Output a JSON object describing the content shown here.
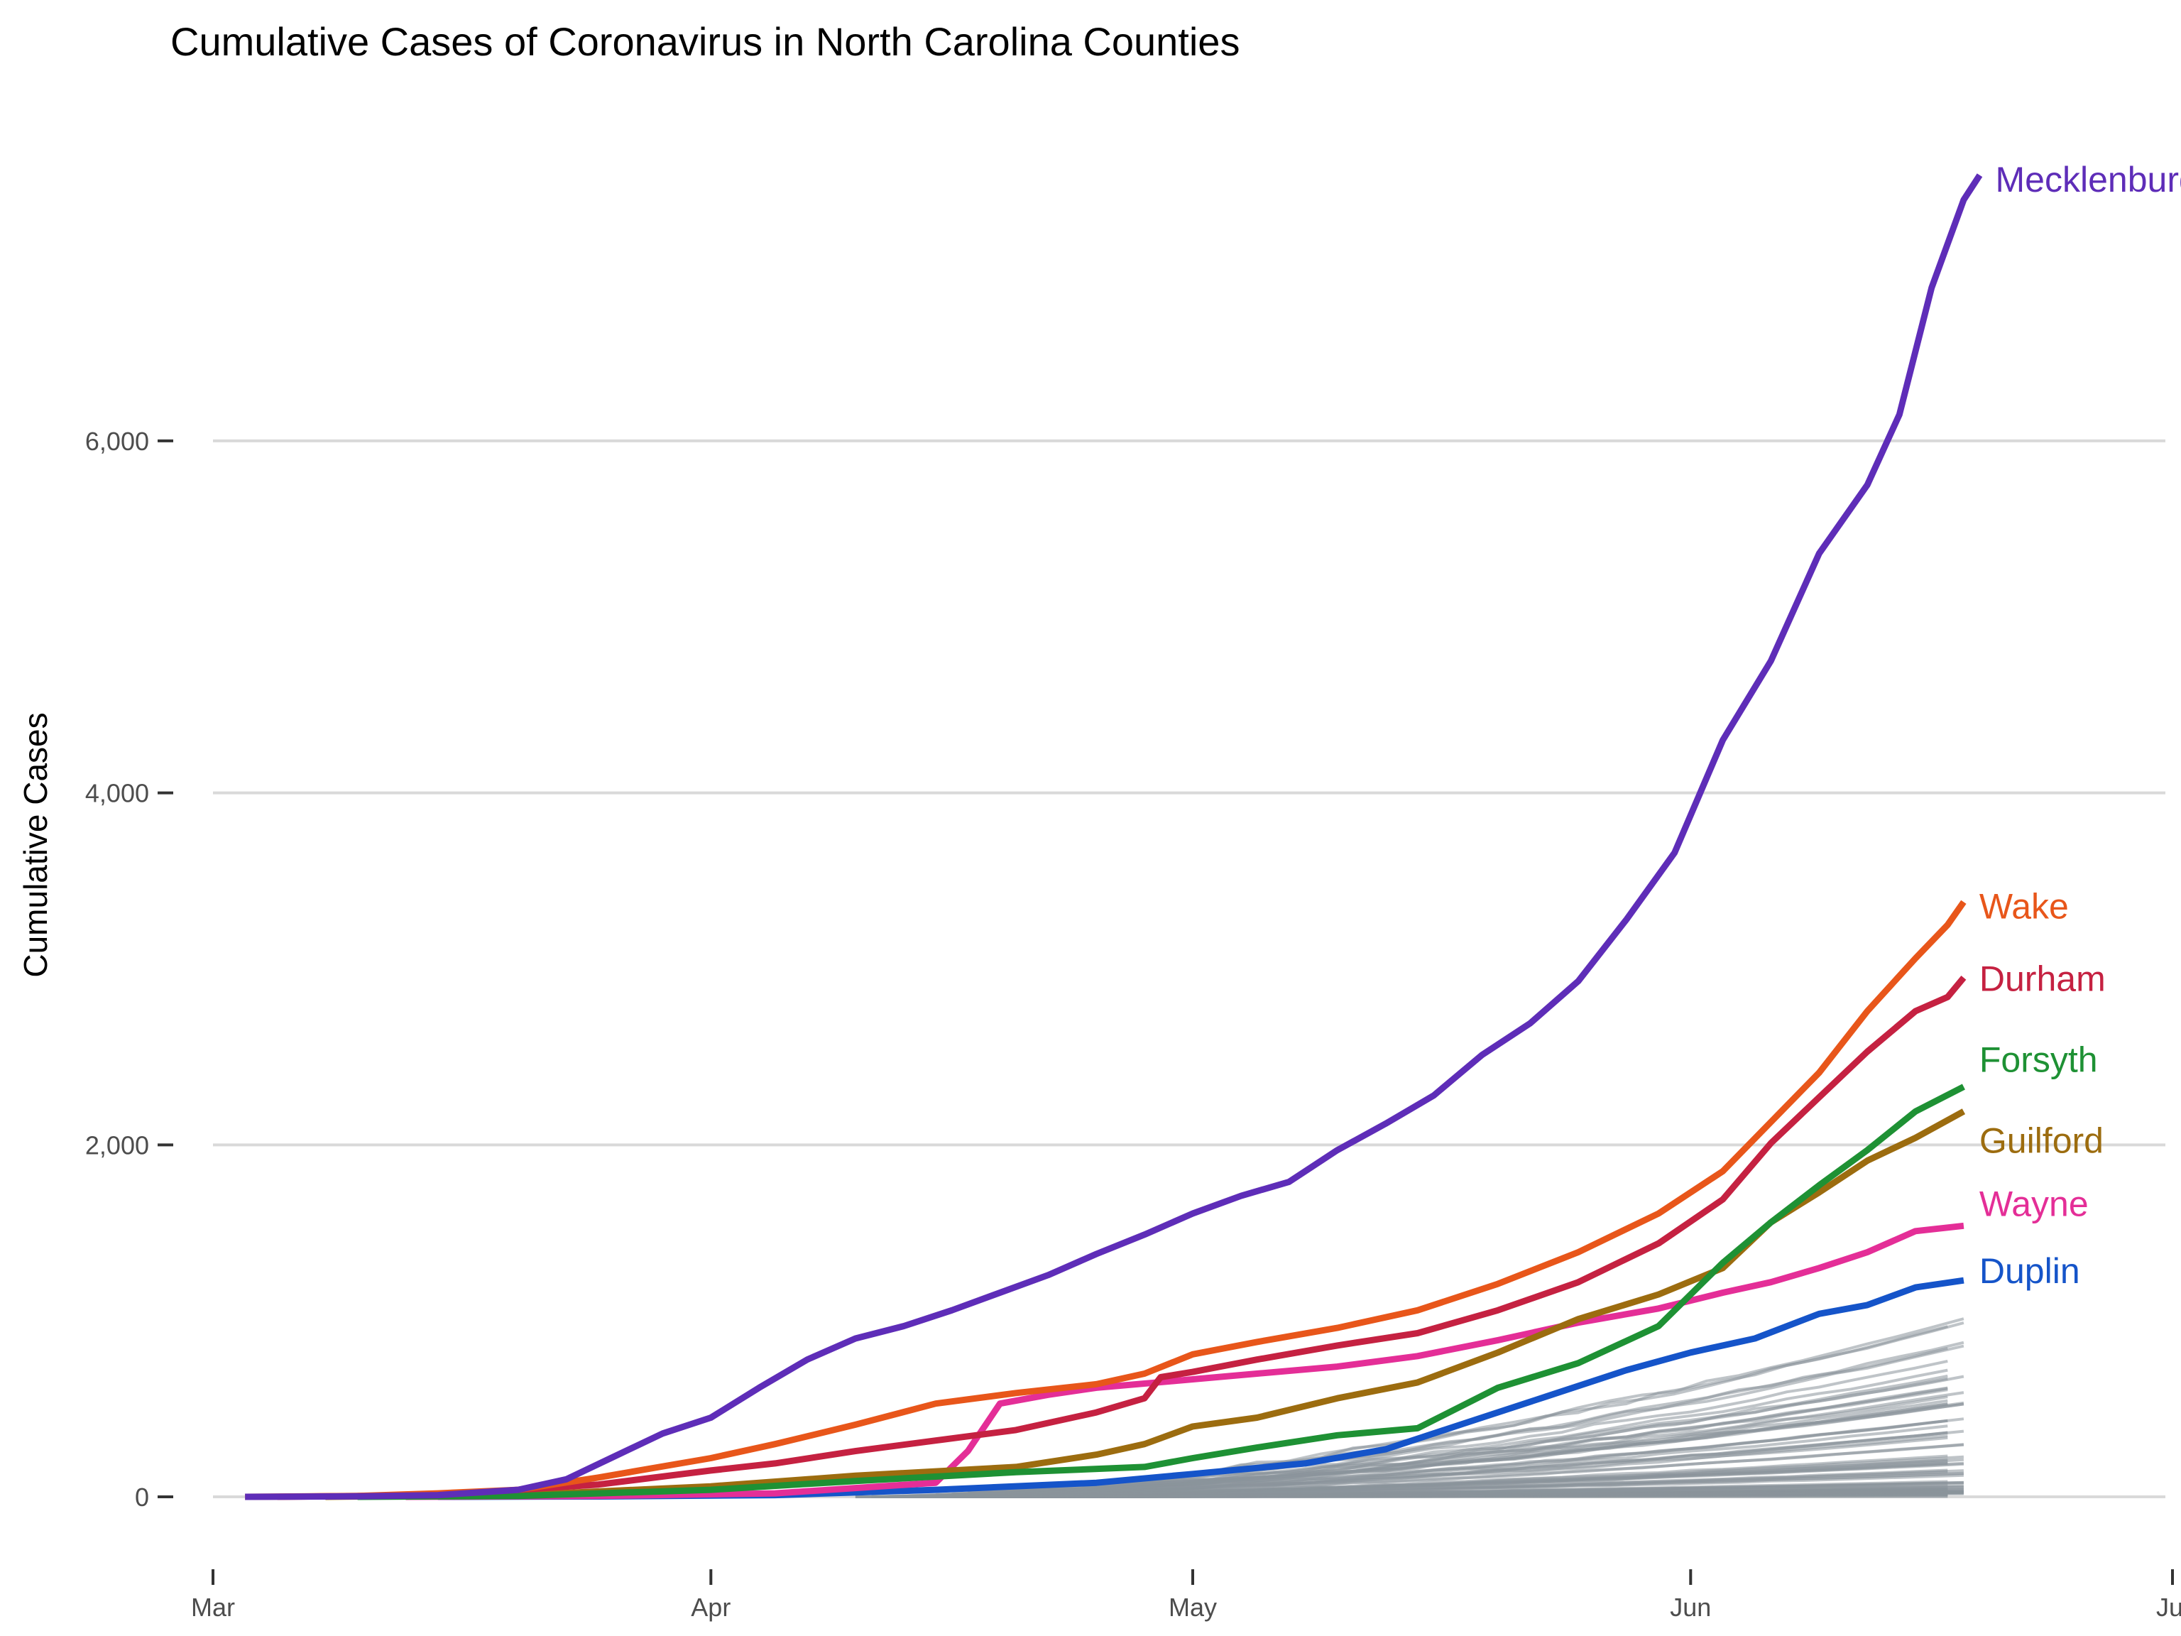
{
  "chart_data": {
    "type": "line",
    "title": "Cumulative Cases of Coronavirus in North Carolina Counties",
    "xlabel": "",
    "ylabel": "Cumulative Cases",
    "x_axis_type": "date",
    "xlim": [
      "2020-03-01",
      "2020-07-01"
    ],
    "ylim": [
      -250,
      7900
    ],
    "x_ticks": [
      {
        "value": "2020-03-01",
        "label": "Mar"
      },
      {
        "value": "2020-04-01",
        "label": "Apr"
      },
      {
        "value": "2020-05-01",
        "label": "May"
      },
      {
        "value": "2020-06-01",
        "label": "Jun"
      },
      {
        "value": "2020-07-01",
        "label": "Jul"
      }
    ],
    "y_ticks": [
      {
        "value": 0,
        "label": "0"
      },
      {
        "value": 2000,
        "label": "2,000"
      },
      {
        "value": 4000,
        "label": "4,000"
      },
      {
        "value": 6000,
        "label": "6,000"
      }
    ],
    "grid": true,
    "legend": "direct labels at line ends",
    "series": [
      {
        "name": "Mecklenburg",
        "color": "#5E2DB8",
        "points": [
          [
            "2020-03-03",
            0
          ],
          [
            "2020-03-10",
            3
          ],
          [
            "2020-03-15",
            10
          ],
          [
            "2020-03-20",
            40
          ],
          [
            "2020-03-23",
            100
          ],
          [
            "2020-03-26",
            230
          ],
          [
            "2020-03-29",
            360
          ],
          [
            "2020-04-01",
            450
          ],
          [
            "2020-04-04",
            620
          ],
          [
            "2020-04-07",
            780
          ],
          [
            "2020-04-10",
            900
          ],
          [
            "2020-04-13",
            970
          ],
          [
            "2020-04-16",
            1060
          ],
          [
            "2020-04-19",
            1160
          ],
          [
            "2020-04-22",
            1260
          ],
          [
            "2020-04-25",
            1380
          ],
          [
            "2020-04-28",
            1490
          ],
          [
            "2020-05-01",
            1610
          ],
          [
            "2020-05-04",
            1710
          ],
          [
            "2020-05-07",
            1790
          ],
          [
            "2020-05-10",
            1970
          ],
          [
            "2020-05-13",
            2120
          ],
          [
            "2020-05-16",
            2280
          ],
          [
            "2020-05-19",
            2510
          ],
          [
            "2020-05-22",
            2690
          ],
          [
            "2020-05-25",
            2930
          ],
          [
            "2020-05-28",
            3280
          ],
          [
            "2020-05-31",
            3660
          ],
          [
            "2020-06-03",
            4300
          ],
          [
            "2020-06-06",
            4750
          ],
          [
            "2020-06-09",
            5360
          ],
          [
            "2020-06-12",
            5750
          ],
          [
            "2020-06-14",
            6150
          ],
          [
            "2020-06-16",
            6870
          ],
          [
            "2020-06-18",
            7370
          ],
          [
            "2020-06-19",
            7510
          ]
        ]
      },
      {
        "name": "Wake",
        "color": "#E8561A",
        "points": [
          [
            "2020-03-03",
            0
          ],
          [
            "2020-03-10",
            5
          ],
          [
            "2020-03-15",
            20
          ],
          [
            "2020-03-20",
            40
          ],
          [
            "2020-03-25",
            110
          ],
          [
            "2020-04-01",
            220
          ],
          [
            "2020-04-05",
            300
          ],
          [
            "2020-04-10",
            410
          ],
          [
            "2020-04-15",
            530
          ],
          [
            "2020-04-20",
            590
          ],
          [
            "2020-04-25",
            640
          ],
          [
            "2020-04-28",
            700
          ],
          [
            "2020-05-01",
            810
          ],
          [
            "2020-05-05",
            880
          ],
          [
            "2020-05-10",
            960
          ],
          [
            "2020-05-15",
            1060
          ],
          [
            "2020-05-20",
            1210
          ],
          [
            "2020-05-25",
            1390
          ],
          [
            "2020-05-30",
            1610
          ],
          [
            "2020-06-03",
            1850
          ],
          [
            "2020-06-06",
            2130
          ],
          [
            "2020-06-09",
            2410
          ],
          [
            "2020-06-12",
            2760
          ],
          [
            "2020-06-15",
            3060
          ],
          [
            "2020-06-17",
            3250
          ],
          [
            "2020-06-18",
            3380
          ]
        ]
      },
      {
        "name": "Durham",
        "color": "#C52141",
        "points": [
          [
            "2020-03-05",
            0
          ],
          [
            "2020-03-15",
            10
          ],
          [
            "2020-03-25",
            70
          ],
          [
            "2020-04-01",
            150
          ],
          [
            "2020-04-05",
            190
          ],
          [
            "2020-04-10",
            260
          ],
          [
            "2020-04-15",
            320
          ],
          [
            "2020-04-20",
            380
          ],
          [
            "2020-04-25",
            480
          ],
          [
            "2020-04-28",
            560
          ],
          [
            "2020-04-29",
            680
          ],
          [
            "2020-05-01",
            710
          ],
          [
            "2020-05-05",
            780
          ],
          [
            "2020-05-10",
            860
          ],
          [
            "2020-05-15",
            930
          ],
          [
            "2020-05-20",
            1060
          ],
          [
            "2020-05-25",
            1220
          ],
          [
            "2020-05-30",
            1440
          ],
          [
            "2020-06-03",
            1690
          ],
          [
            "2020-06-06",
            2010
          ],
          [
            "2020-06-09",
            2270
          ],
          [
            "2020-06-12",
            2530
          ],
          [
            "2020-06-15",
            2760
          ],
          [
            "2020-06-17",
            2840
          ],
          [
            "2020-06-18",
            2950
          ]
        ]
      },
      {
        "name": "Forsyth",
        "color": "#1E9134",
        "points": [
          [
            "2020-03-10",
            0
          ],
          [
            "2020-03-20",
            5
          ],
          [
            "2020-04-01",
            40
          ],
          [
            "2020-04-10",
            90
          ],
          [
            "2020-04-20",
            140
          ],
          [
            "2020-04-28",
            170
          ],
          [
            "2020-05-01",
            220
          ],
          [
            "2020-05-05",
            280
          ],
          [
            "2020-05-10",
            350
          ],
          [
            "2020-05-15",
            390
          ],
          [
            "2020-05-20",
            620
          ],
          [
            "2020-05-25",
            760
          ],
          [
            "2020-05-30",
            970
          ],
          [
            "2020-06-03",
            1330
          ],
          [
            "2020-06-06",
            1560
          ],
          [
            "2020-06-09",
            1770
          ],
          [
            "2020-06-12",
            1970
          ],
          [
            "2020-06-15",
            2190
          ],
          [
            "2020-06-18",
            2330
          ]
        ]
      },
      {
        "name": "Guilford",
        "color": "#9C6C0F",
        "points": [
          [
            "2020-03-08",
            0
          ],
          [
            "2020-03-20",
            10
          ],
          [
            "2020-04-01",
            60
          ],
          [
            "2020-04-10",
            120
          ],
          [
            "2020-04-20",
            170
          ],
          [
            "2020-04-25",
            240
          ],
          [
            "2020-04-28",
            300
          ],
          [
            "2020-05-01",
            400
          ],
          [
            "2020-05-05",
            450
          ],
          [
            "2020-05-10",
            560
          ],
          [
            "2020-05-15",
            650
          ],
          [
            "2020-05-20",
            820
          ],
          [
            "2020-05-25",
            1010
          ],
          [
            "2020-05-30",
            1150
          ],
          [
            "2020-06-03",
            1300
          ],
          [
            "2020-06-06",
            1560
          ],
          [
            "2020-06-09",
            1730
          ],
          [
            "2020-06-12",
            1910
          ],
          [
            "2020-06-15",
            2040
          ],
          [
            "2020-06-18",
            2190
          ]
        ]
      },
      {
        "name": "Wayne",
        "color": "#E42E97",
        "points": [
          [
            "2020-03-13",
            0
          ],
          [
            "2020-03-25",
            5
          ],
          [
            "2020-04-05",
            20
          ],
          [
            "2020-04-10",
            50
          ],
          [
            "2020-04-15",
            80
          ],
          [
            "2020-04-17",
            260
          ],
          [
            "2020-04-19",
            530
          ],
          [
            "2020-04-22",
            580
          ],
          [
            "2020-04-25",
            620
          ],
          [
            "2020-04-30",
            660
          ],
          [
            "2020-05-05",
            700
          ],
          [
            "2020-05-10",
            740
          ],
          [
            "2020-05-15",
            800
          ],
          [
            "2020-05-20",
            890
          ],
          [
            "2020-05-25",
            990
          ],
          [
            "2020-05-30",
            1070
          ],
          [
            "2020-06-03",
            1160
          ],
          [
            "2020-06-06",
            1220
          ],
          [
            "2020-06-09",
            1300
          ],
          [
            "2020-06-12",
            1390
          ],
          [
            "2020-06-15",
            1510
          ],
          [
            "2020-06-18",
            1540
          ]
        ]
      },
      {
        "name": "Duplin",
        "color": "#1554C9",
        "points": [
          [
            "2020-03-15",
            0
          ],
          [
            "2020-03-25",
            2
          ],
          [
            "2020-04-05",
            10
          ],
          [
            "2020-04-15",
            40
          ],
          [
            "2020-04-25",
            80
          ],
          [
            "2020-05-01",
            130
          ],
          [
            "2020-05-08",
            190
          ],
          [
            "2020-05-13",
            270
          ],
          [
            "2020-05-18",
            420
          ],
          [
            "2020-05-23",
            570
          ],
          [
            "2020-05-28",
            720
          ],
          [
            "2020-06-01",
            820
          ],
          [
            "2020-06-05",
            900
          ],
          [
            "2020-06-09",
            1040
          ],
          [
            "2020-06-12",
            1090
          ],
          [
            "2020-06-15",
            1190
          ],
          [
            "2020-06-18",
            1230
          ]
        ]
      }
    ]
  }
}
